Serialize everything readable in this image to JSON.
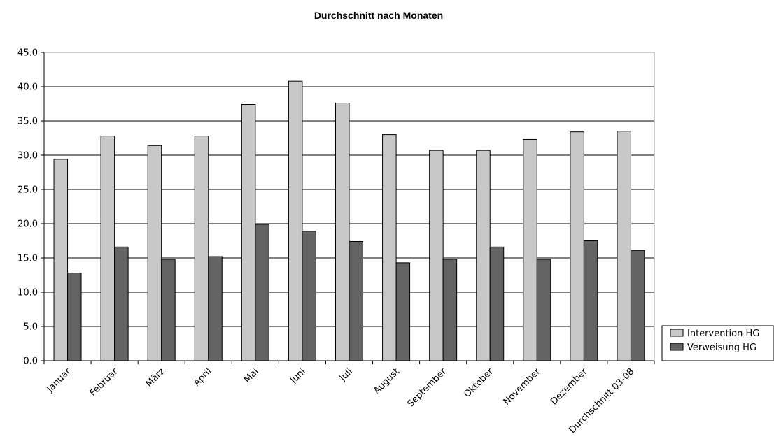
{
  "chart_data": {
    "type": "bar",
    "title": "Durchschnitt nach Monaten",
    "xlabel": "",
    "ylabel": "",
    "categories": [
      "Januar",
      "Februar",
      "März",
      "April",
      "Mai",
      "Juni",
      "Juli",
      "August",
      "September",
      "Oktober",
      "November",
      "Dezember",
      "Durchschnitt 03-08"
    ],
    "series": [
      {
        "name": "Intervention HG",
        "color": "#c8c8c8",
        "values": [
          29.4,
          32.8,
          31.4,
          32.8,
          37.4,
          40.8,
          37.6,
          33.0,
          30.7,
          30.7,
          32.3,
          33.4,
          33.5
        ]
      },
      {
        "name": "Verweisung HG",
        "color": "#636363",
        "values": [
          12.8,
          16.6,
          14.8,
          15.2,
          19.9,
          18.9,
          17.4,
          14.3,
          14.8,
          16.6,
          14.8,
          17.5,
          16.1
        ]
      }
    ],
    "ylim": [
      0,
      45
    ],
    "yticks": [
      "0.0",
      "5.0",
      "10.0",
      "15.0",
      "20.0",
      "25.0",
      "30.0",
      "35.0",
      "40.0",
      "45.0"
    ],
    "grid": true,
    "legend_position": "right"
  }
}
